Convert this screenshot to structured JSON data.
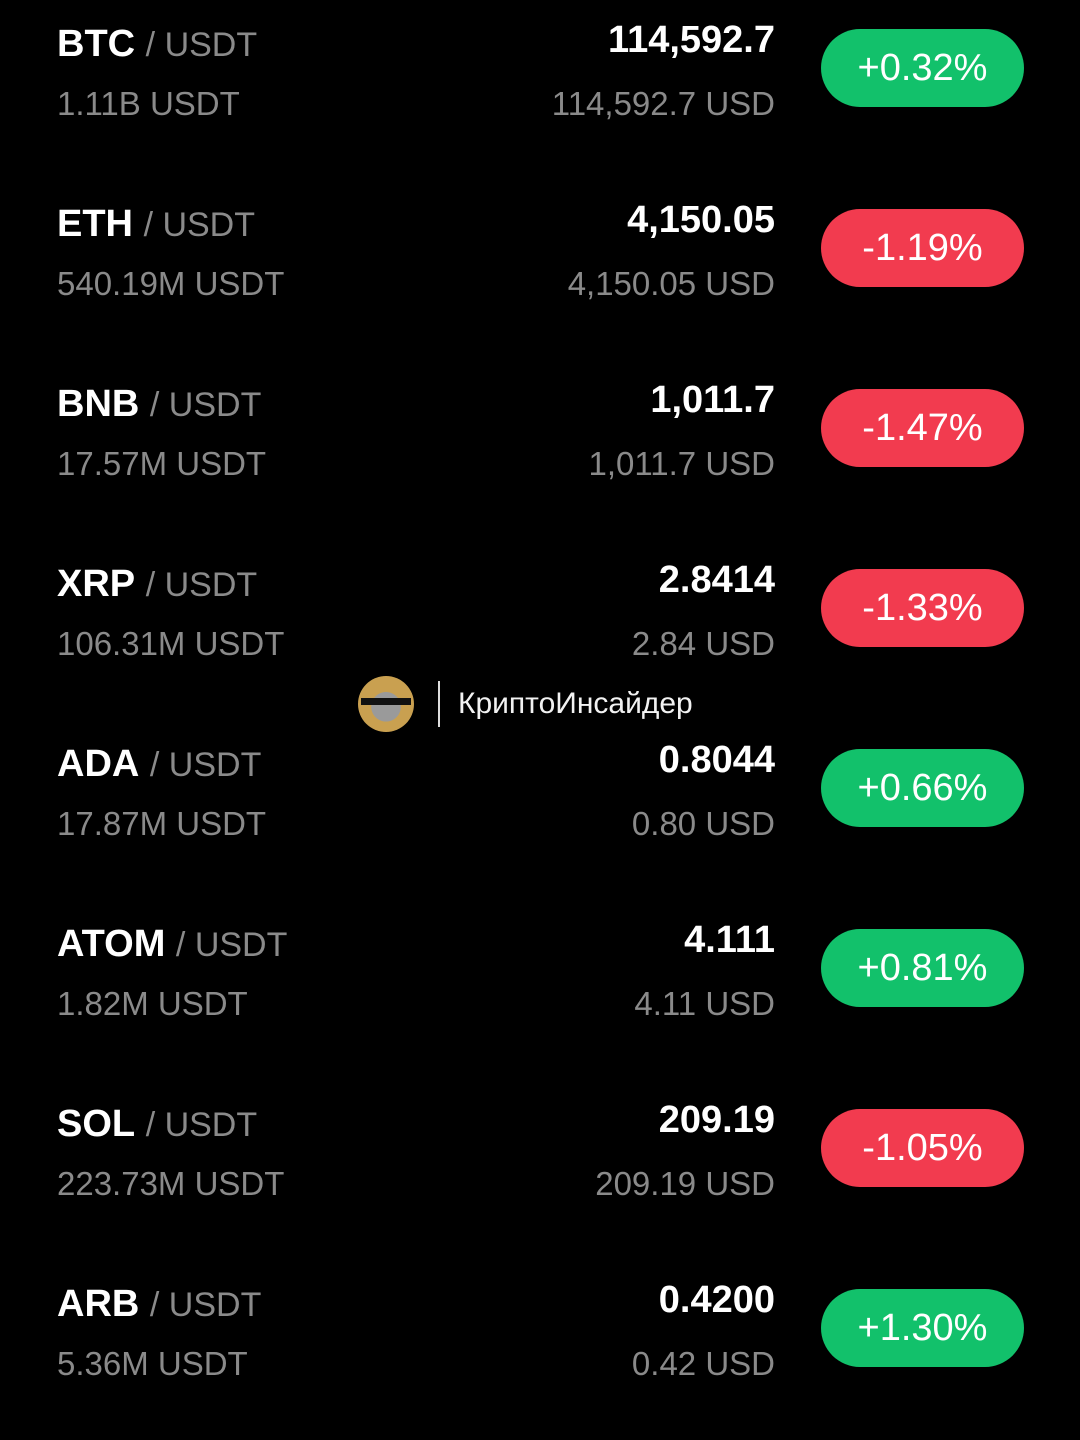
{
  "colors": {
    "up": "#12c16b",
    "down": "#f23b4f",
    "muted": "#8a8a8a"
  },
  "watermark": {
    "text": "КриптоИнсайдер",
    "avatar_text": "КриптоИнсайдер"
  },
  "rows": [
    {
      "base": "BTC",
      "quote": "/ USDT",
      "volume": "1.11B USDT",
      "price": "114,592.7",
      "fiat": "114,592.7 USD",
      "change": "+0.32%",
      "dir": "up"
    },
    {
      "base": "ETH",
      "quote": "/ USDT",
      "volume": "540.19M USDT",
      "price": "4,150.05",
      "fiat": "4,150.05 USD",
      "change": "-1.19%",
      "dir": "down"
    },
    {
      "base": "BNB",
      "quote": "/ USDT",
      "volume": "17.57M USDT",
      "price": "1,011.7",
      "fiat": "1,011.7 USD",
      "change": "-1.47%",
      "dir": "down"
    },
    {
      "base": "XRP",
      "quote": "/ USDT",
      "volume": "106.31M USDT",
      "price": "2.8414",
      "fiat": "2.84 USD",
      "change": "-1.33%",
      "dir": "down"
    },
    {
      "base": "ADA",
      "quote": "/ USDT",
      "volume": "17.87M USDT",
      "price": "0.8044",
      "fiat": "0.80 USD",
      "change": "+0.66%",
      "dir": "up"
    },
    {
      "base": "ATOM",
      "quote": "/ USDT",
      "volume": "1.82M USDT",
      "price": "4.111",
      "fiat": "4.11 USD",
      "change": "+0.81%",
      "dir": "up"
    },
    {
      "base": "SOL",
      "quote": "/ USDT",
      "volume": "223.73M USDT",
      "price": "209.19",
      "fiat": "209.19 USD",
      "change": "-1.05%",
      "dir": "down"
    },
    {
      "base": "ARB",
      "quote": "/ USDT",
      "volume": "5.36M USDT",
      "price": "0.4200",
      "fiat": "0.42 USD",
      "change": "+1.30%",
      "dir": "up"
    }
  ]
}
